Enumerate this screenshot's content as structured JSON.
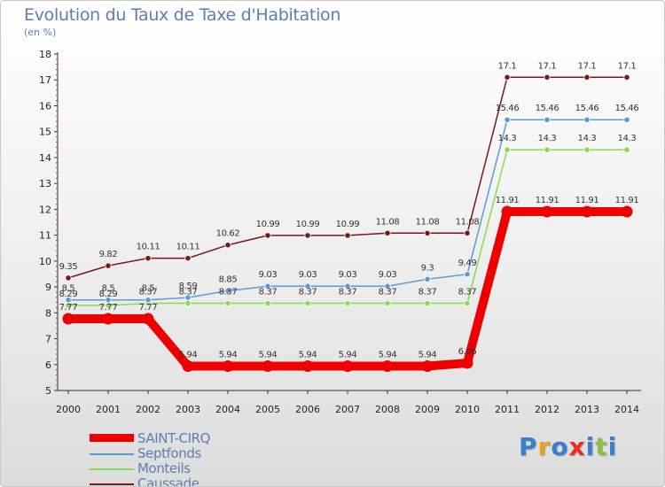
{
  "title": "Evolution du Taux de Taxe d'Habitation",
  "subtitle": "(en %)",
  "logo": {
    "letters": [
      {
        "ch": "P",
        "color": "#3a7fd0"
      },
      {
        "ch": "r",
        "color": "#e8a020"
      },
      {
        "ch": "o",
        "color": "#3a7fd0"
      },
      {
        "ch": "x",
        "color": "#e83020"
      },
      {
        "ch": "i",
        "color": "#3a7fd0"
      },
      {
        "ch": "t",
        "color": "#8cc040"
      },
      {
        "ch": "i",
        "color": "#3a7fd0"
      }
    ]
  },
  "chart_data": {
    "type": "line",
    "x": [
      "2000",
      "2001",
      "2002",
      "2003",
      "2004",
      "2005",
      "2006",
      "2007",
      "2008",
      "2009",
      "2010",
      "2011",
      "2012",
      "2013",
      "2014"
    ],
    "ylim": [
      5,
      18
    ],
    "yticks": [
      "5",
      "6",
      "7",
      "8",
      "9",
      "10",
      "11",
      "12",
      "13",
      "14",
      "15",
      "16",
      "17",
      "18"
    ],
    "grid": false,
    "legend_position": "bottom-left",
    "series": [
      {
        "name": "SAINT-CIRQ",
        "color": "#ee0000",
        "bold": true,
        "values": [
          7.77,
          7.77,
          7.77,
          5.94,
          5.94,
          5.94,
          5.94,
          5.94,
          5.94,
          5.94,
          6.06,
          11.91,
          11.91,
          11.91,
          11.91
        ],
        "labels": [
          "7.77",
          "7.77",
          "7.77",
          "5.94",
          "5.94",
          "5.94",
          "5.94",
          "5.94",
          "5.94",
          "5.94",
          "6.06",
          "11.91",
          "11.91",
          "11.91",
          "11.91"
        ]
      },
      {
        "name": "Septfonds",
        "color": "#5a9ad8",
        "bold": false,
        "values": [
          8.5,
          8.5,
          8.5,
          8.59,
          8.85,
          9.03,
          9.03,
          9.03,
          9.03,
          9.3,
          9.49,
          15.46,
          15.46,
          15.46,
          15.46
        ],
        "labels": [
          "8.5",
          "8.5",
          "8.5",
          "8.59",
          "8.85",
          "9.03",
          "9.03",
          "9.03",
          "9.03",
          "9.3",
          "9.49",
          "15.46",
          "15.46",
          "15.46",
          "15.46"
        ]
      },
      {
        "name": "Monteils",
        "color": "#8ad850",
        "bold": false,
        "values": [
          8.29,
          8.29,
          8.37,
          8.37,
          8.37,
          8.37,
          8.37,
          8.37,
          8.37,
          8.37,
          8.37,
          14.3,
          14.3,
          14.3,
          14.3
        ],
        "labels": [
          "8.29",
          "8.29",
          "8.37",
          "8.37",
          "8.37",
          "8.37",
          "8.37",
          "8.37",
          "8.37",
          "8.37",
          "8.37",
          "14.3",
          "14.3",
          "14.3",
          "14.3"
        ]
      },
      {
        "name": "Caussade",
        "color": "#7a1818",
        "bold": false,
        "values": [
          9.35,
          9.82,
          10.11,
          10.11,
          10.62,
          10.99,
          10.99,
          10.99,
          11.08,
          11.08,
          11.08,
          17.1,
          17.1,
          17.1,
          17.1
        ],
        "labels": [
          "9.35",
          "9.82",
          "10.11",
          "10.11",
          "10.62",
          "10.99",
          "10.99",
          "10.99",
          "11.08",
          "11.08",
          "11.08",
          "17.1",
          "17.1",
          "17.1",
          "17.1"
        ]
      }
    ]
  }
}
